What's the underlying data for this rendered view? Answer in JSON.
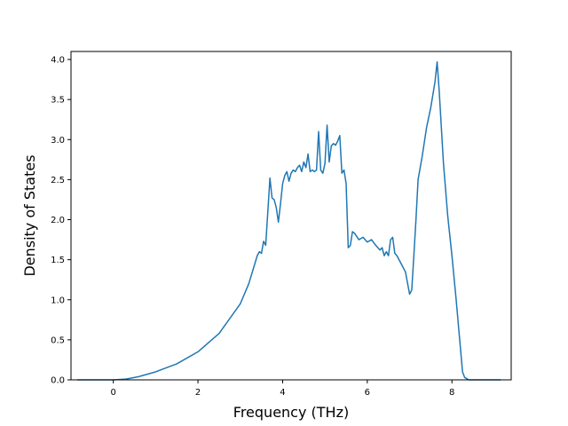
{
  "chart_data": {
    "type": "line",
    "title": "",
    "xlabel": "Frequency (THz)",
    "ylabel": "Density of States",
    "xlim": [
      -1.0,
      9.4
    ],
    "ylim": [
      0.0,
      4.1
    ],
    "xticks": [
      0,
      2,
      4,
      6,
      8
    ],
    "xtick_labels": [
      "0",
      "2",
      "4",
      "6",
      "8"
    ],
    "yticks": [
      0.0,
      0.5,
      1.0,
      1.5,
      2.0,
      2.5,
      3.0,
      3.5,
      4.0
    ],
    "ytick_labels": [
      "0.0",
      "0.5",
      "1.0",
      "1.5",
      "2.0",
      "2.5",
      "3.0",
      "3.5",
      "4.0"
    ],
    "grid": false,
    "legend": "none",
    "series": [
      {
        "color": "#1f77b4",
        "x": [
          -0.85,
          0.0,
          0.3,
          0.6,
          1.0,
          1.5,
          2.0,
          2.5,
          3.0,
          3.2,
          3.4,
          3.45,
          3.5,
          3.55,
          3.6,
          3.65,
          3.7,
          3.75,
          3.8,
          3.85,
          3.9,
          3.95,
          4.0,
          4.05,
          4.1,
          4.15,
          4.2,
          4.25,
          4.3,
          4.35,
          4.4,
          4.45,
          4.5,
          4.55,
          4.6,
          4.65,
          4.7,
          4.75,
          4.8,
          4.85,
          4.9,
          4.95,
          5.0,
          5.05,
          5.1,
          5.15,
          5.2,
          5.25,
          5.3,
          5.35,
          5.4,
          5.45,
          5.5,
          5.55,
          5.6,
          5.65,
          5.7,
          5.8,
          5.9,
          6.0,
          6.1,
          6.2,
          6.3,
          6.35,
          6.4,
          6.45,
          6.5,
          6.55,
          6.6,
          6.65,
          6.7,
          6.8,
          6.9,
          7.0,
          7.05,
          7.1,
          7.15,
          7.2,
          7.3,
          7.4,
          7.5,
          7.6,
          7.65,
          7.7,
          7.8,
          7.9,
          8.0,
          8.1,
          8.2,
          8.25,
          8.3,
          8.4,
          9.15
        ],
        "y": [
          0.0,
          0.0,
          0.01,
          0.04,
          0.1,
          0.2,
          0.35,
          0.58,
          0.95,
          1.2,
          1.55,
          1.6,
          1.58,
          1.73,
          1.68,
          2.1,
          2.52,
          2.27,
          2.25,
          2.15,
          1.97,
          2.2,
          2.45,
          2.55,
          2.6,
          2.48,
          2.58,
          2.62,
          2.6,
          2.65,
          2.68,
          2.6,
          2.72,
          2.65,
          2.82,
          2.6,
          2.62,
          2.6,
          2.62,
          3.1,
          2.62,
          2.58,
          2.7,
          3.18,
          2.72,
          2.92,
          2.95,
          2.93,
          2.98,
          3.05,
          2.58,
          2.62,
          2.45,
          1.65,
          1.68,
          1.85,
          1.83,
          1.75,
          1.78,
          1.72,
          1.75,
          1.68,
          1.62,
          1.65,
          1.55,
          1.6,
          1.55,
          1.75,
          1.78,
          1.58,
          1.55,
          1.45,
          1.35,
          1.07,
          1.12,
          1.55,
          2.0,
          2.5,
          2.8,
          3.15,
          3.4,
          3.72,
          3.97,
          3.6,
          2.7,
          2.05,
          1.55,
          1.0,
          0.4,
          0.1,
          0.03,
          0.0,
          0.0
        ]
      }
    ]
  }
}
